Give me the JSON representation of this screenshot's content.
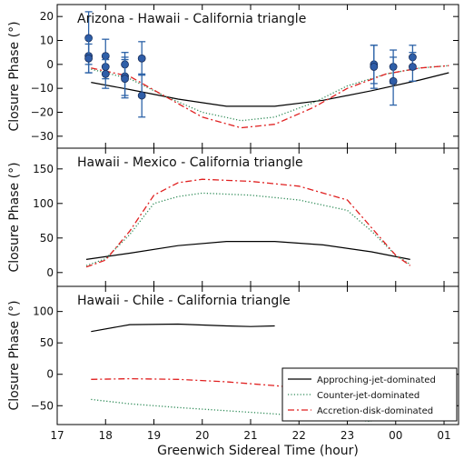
{
  "chart_data": {
    "type": "line",
    "xlabel": "Greenwich Sidereal Time (hour)",
    "x_ticks": [
      "17",
      "18",
      "19",
      "20",
      "21",
      "22",
      "23",
      "00",
      "01"
    ],
    "xlim": [
      17,
      25.3
    ],
    "legend": {
      "placement": "lower-right of bottom panel",
      "entries": [
        {
          "label": "Approching-jet-dominated",
          "style": "solid",
          "color": "#000000"
        },
        {
          "label": "Counter-jet-dominated",
          "style": "dotted",
          "color": "#2e8b57"
        },
        {
          "label": "Accretion-disk-dominated",
          "style": "dashed",
          "color": "#e02020"
        }
      ]
    },
    "ylabel": "Closure Phase (°)",
    "panels": [
      {
        "title": "Arizona - Hawaii - California triangle",
        "ylim": [
          -35,
          25
        ],
        "yticks": [
          -30,
          -20,
          -10,
          0,
          10,
          20
        ],
        "series": [
          {
            "style": "solid",
            "color": "#000000",
            "x": [
              17.7,
              18.5,
              19.5,
              20.5,
              21.5,
              22.5,
              23.5,
              24.5,
              25.1
            ],
            "y": [
              -7.5,
              -10.5,
              -14.5,
              -17.5,
              -17.5,
              -15,
              -11,
              -6.5,
              -3.5
            ]
          },
          {
            "style": "dotted",
            "color": "#2e8b57",
            "x": [
              17.7,
              18.5,
              19.2,
              20,
              20.8,
              21.5,
              22.3,
              23,
              23.8,
              24.5,
              25.1
            ],
            "y": [
              -2,
              -6,
              -13,
              -20,
              -23.5,
              -22,
              -16,
              -9,
              -4,
              -1.5,
              -0.5
            ]
          },
          {
            "style": "dashed",
            "color": "#e02020",
            "x": [
              17.7,
              18.5,
              19.2,
              20,
              20.8,
              21.5,
              22.3,
              23,
              23.8,
              24.5,
              25.1
            ],
            "y": [
              -1.5,
              -5,
              -13,
              -22,
              -26.5,
              -25,
              -18,
              -10,
              -4,
              -1.5,
              -0.5
            ]
          }
        ],
        "points": [
          {
            "x": 17.65,
            "y": 11,
            "err": 11
          },
          {
            "x": 17.65,
            "y": 3.5,
            "err": 7
          },
          {
            "x": 17.65,
            "y": 2.5,
            "err": 6
          },
          {
            "x": 18.0,
            "y": 3.5,
            "err": 7
          },
          {
            "x": 18.0,
            "y": -1,
            "err": 5
          },
          {
            "x": 18.0,
            "y": -4,
            "err": 6
          },
          {
            "x": 18.4,
            "y": 0,
            "err": 5
          },
          {
            "x": 18.4,
            "y": -5,
            "err": 8
          },
          {
            "x": 18.4,
            "y": -6,
            "err": 8
          },
          {
            "x": 18.75,
            "y": 2.5,
            "err": 7
          },
          {
            "x": 18.75,
            "y": -13,
            "err": 9
          },
          {
            "x": 23.55,
            "y": 0,
            "err": 8
          },
          {
            "x": 23.55,
            "y": -1,
            "err": 9
          },
          {
            "x": 23.95,
            "y": -1,
            "err": 7
          },
          {
            "x": 23.95,
            "y": -7,
            "err": 10
          },
          {
            "x": 24.35,
            "y": 3,
            "err": 5
          },
          {
            "x": 24.35,
            "y": -1,
            "err": 6
          }
        ]
      },
      {
        "title": "Hawaii - Mexico - California triangle",
        "ylim": [
          -20,
          180
        ],
        "yticks": [
          0,
          50,
          100,
          150
        ],
        "series": [
          {
            "style": "solid",
            "color": "#000000",
            "x": [
              17.6,
              18.5,
              19.5,
              20.5,
              21.5,
              22.5,
              23.5,
              24.3
            ],
            "y": [
              19,
              28,
              39,
              45,
              45,
              40,
              30,
              19
            ]
          },
          {
            "style": "dotted",
            "color": "#2e8b57",
            "x": [
              17.6,
              18,
              18.5,
              19,
              19.5,
              20,
              21,
              22,
              23,
              23.5,
              24,
              24.3
            ],
            "y": [
              10,
              20,
              55,
              100,
              110,
              115,
              112,
              105,
              90,
              60,
              25,
              12
            ]
          },
          {
            "style": "dashed",
            "color": "#e02020",
            "x": [
              17.6,
              18,
              18.5,
              19,
              19.5,
              20,
              21,
              22,
              23,
              23.5,
              24,
              24.3
            ],
            "y": [
              8,
              18,
              60,
              112,
              130,
              135,
              132,
              125,
              105,
              65,
              25,
              10
            ]
          }
        ]
      },
      {
        "title": "Hawaii - Chile - California triangle",
        "ylim": [
          -80,
          140
        ],
        "yticks": [
          -50,
          0,
          50,
          100
        ],
        "series": [
          {
            "style": "solid",
            "color": "#000000",
            "x": [
              17.7,
              18.5,
              19.5,
              20.5,
              21,
              21.5
            ],
            "y": [
              68,
              79,
              80,
              77,
              76,
              77
            ]
          },
          {
            "style": "dotted",
            "color": "#2e8b57",
            "x": [
              17.7,
              18.5,
              19.5,
              20.5,
              21.5,
              22.5,
              23.5
            ],
            "y": [
              -40,
              -47,
              -53,
              -58,
              -63,
              -69,
              -75
            ]
          },
          {
            "style": "dashed",
            "color": "#e02020",
            "x": [
              17.7,
              18.5,
              19.5,
              20.5,
              21.5,
              22.5,
              23.5
            ],
            "y": [
              -8,
              -7,
              -8,
              -12,
              -18,
              -25,
              -35
            ]
          }
        ]
      }
    ]
  }
}
